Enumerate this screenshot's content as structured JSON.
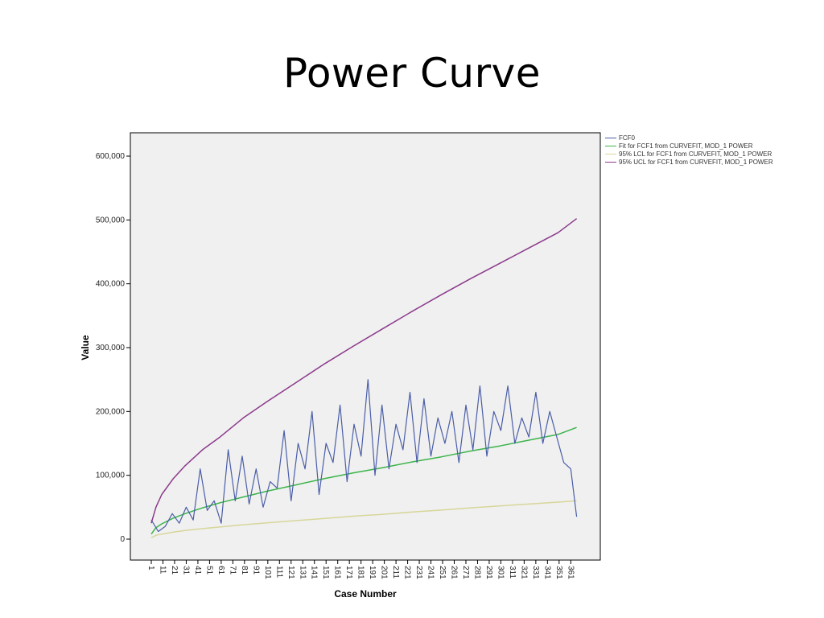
{
  "slide": {
    "title": "Power Curve"
  },
  "chart_data": {
    "type": "line",
    "title": "",
    "xlabel": "Case Number",
    "ylabel": "Value",
    "xlim": [
      1,
      367
    ],
    "ylim": [
      0,
      600000
    ],
    "grid": false,
    "legend_position": "right",
    "plot_background": "#f0f0f0",
    "x_ticks": [
      "1",
      "11",
      "21",
      "31",
      "41",
      "51",
      "61",
      "71",
      "81",
      "91",
      "101",
      "111",
      "121",
      "131",
      "141",
      "151",
      "161",
      "171",
      "181",
      "191",
      "201",
      "211",
      "221",
      "231",
      "241",
      "251",
      "261",
      "271",
      "281",
      "291",
      "301",
      "311",
      "321",
      "331",
      "341",
      "351",
      "361"
    ],
    "y_ticks": [
      "0",
      "100,000",
      "200,000",
      "300,000",
      "400,000",
      "500,000",
      "600,000"
    ],
    "x_tick_values": [
      1,
      11,
      21,
      31,
      41,
      51,
      61,
      71,
      81,
      91,
      101,
      111,
      121,
      131,
      141,
      151,
      161,
      171,
      181,
      191,
      201,
      211,
      221,
      231,
      241,
      251,
      261,
      271,
      281,
      291,
      301,
      311,
      321,
      331,
      341,
      351,
      361
    ],
    "y_tick_values": [
      0,
      100000,
      200000,
      300000,
      400000,
      500000,
      600000
    ],
    "series": [
      {
        "name": "FCF0",
        "color": "#4a5ea8",
        "x": [
          1,
          7,
          13,
          19,
          25,
          31,
          37,
          43,
          49,
          55,
          61,
          67,
          73,
          79,
          85,
          91,
          97,
          103,
          109,
          115,
          121,
          127,
          133,
          139,
          145,
          151,
          157,
          163,
          169,
          175,
          181,
          187,
          193,
          199,
          205,
          211,
          217,
          223,
          229,
          235,
          241,
          247,
          253,
          259,
          265,
          271,
          277,
          283,
          289,
          295,
          301,
          307,
          313,
          319,
          325,
          331,
          337,
          343,
          349,
          355,
          361,
          366
        ],
        "values": [
          30000,
          12000,
          20000,
          40000,
          25000,
          50000,
          30000,
          110000,
          45000,
          60000,
          25000,
          140000,
          60000,
          130000,
          55000,
          110000,
          50000,
          90000,
          80000,
          170000,
          60000,
          150000,
          110000,
          200000,
          70000,
          150000,
          120000,
          210000,
          90000,
          180000,
          130000,
          250000,
          100000,
          210000,
          110000,
          180000,
          140000,
          230000,
          120000,
          220000,
          130000,
          190000,
          150000,
          200000,
          120000,
          210000,
          140000,
          240000,
          130000,
          200000,
          170000,
          240000,
          150000,
          190000,
          160000,
          230000,
          150000,
          200000,
          160000,
          120000,
          110000,
          35000
        ]
      },
      {
        "name": "Fit for FCF1 from CURVEFIT, MOD_1 POWER",
        "color": "#3cb44b",
        "x": [
          1,
          5,
          10,
          20,
          30,
          45,
          60,
          80,
          100,
          125,
          150,
          175,
          200,
          225,
          250,
          275,
          300,
          325,
          350,
          366
        ],
        "values": [
          8000,
          18000,
          24000,
          33000,
          40000,
          49000,
          57000,
          66000,
          75000,
          85000,
          95000,
          104000,
          112000,
          121000,
          129000,
          138000,
          146000,
          155000,
          164000,
          175000
        ]
      },
      {
        "name": "95% LCL for FCF1 from CURVEFIT, MOD_1 POWER",
        "color": "#d8d69a",
        "x": [
          1,
          5,
          10,
          20,
          30,
          45,
          60,
          80,
          100,
          125,
          150,
          175,
          200,
          225,
          250,
          275,
          300,
          325,
          350,
          366
        ],
        "values": [
          2000,
          6000,
          8000,
          11000,
          13500,
          16500,
          19000,
          22500,
          25500,
          29000,
          32500,
          36000,
          39000,
          42500,
          45500,
          49000,
          52000,
          55000,
          58000,
          60000
        ]
      },
      {
        "name": "95% UCL for FCF1 from CURVEFIT, MOD_1 POWER",
        "color": "#8b3a8b",
        "x": [
          1,
          5,
          10,
          20,
          30,
          45,
          60,
          80,
          100,
          125,
          150,
          175,
          200,
          225,
          250,
          275,
          300,
          325,
          350,
          366
        ],
        "values": [
          25000,
          50000,
          70000,
          95000,
          115000,
          140000,
          160000,
          190000,
          215000,
          245000,
          275000,
          303000,
          330000,
          357000,
          383000,
          408000,
          432000,
          456000,
          480000,
          502000
        ]
      }
    ]
  }
}
